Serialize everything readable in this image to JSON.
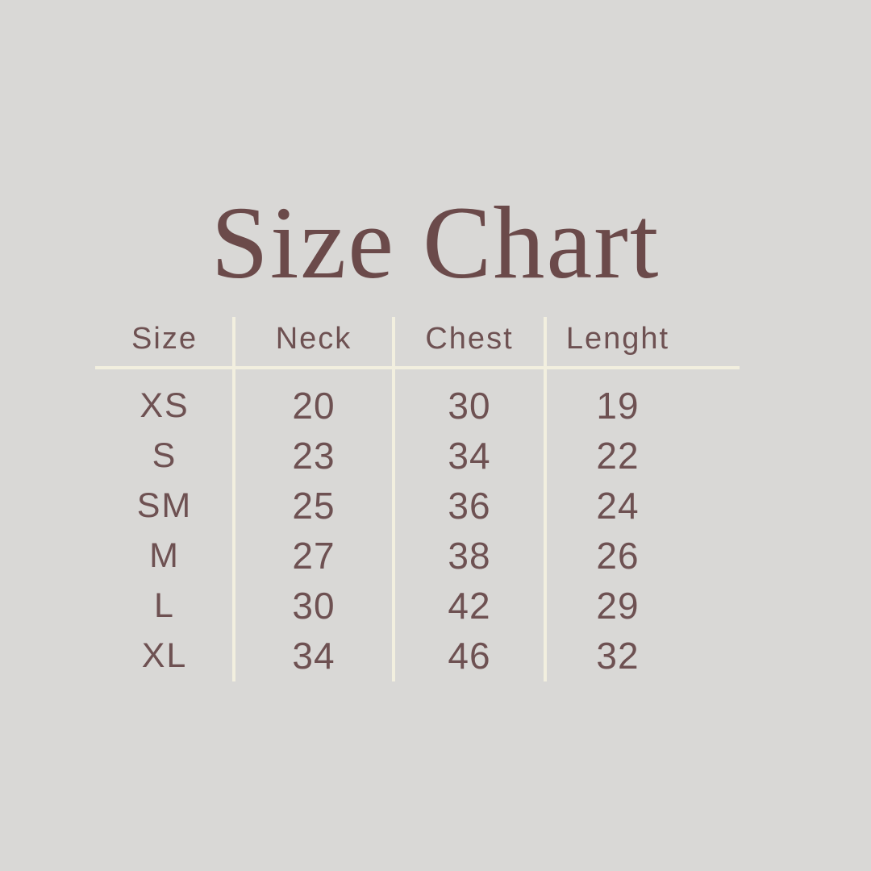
{
  "page": {
    "background_color": "#d9d8d6",
    "title_color": "#6b4a4a",
    "table_text_color": "#6e5152",
    "grid_line_color": "#f2efdf"
  },
  "title": "Size Chart",
  "chart_data": {
    "type": "table",
    "title": "Size Chart",
    "columns": [
      "Size",
      "Neck",
      "Chest",
      "Lenght"
    ],
    "rows": [
      [
        "XS",
        "20",
        "30",
        "19"
      ],
      [
        "S",
        "23",
        "34",
        "22"
      ],
      [
        "SM",
        "25",
        "36",
        "24"
      ],
      [
        "M",
        "27",
        "38",
        "26"
      ],
      [
        "L",
        "30",
        "42",
        "29"
      ],
      [
        "XL",
        "34",
        "46",
        "32"
      ]
    ],
    "layout": {
      "grid": "vertical separators between all 4 columns, single horizontal rule under header row",
      "legend_position": "none"
    }
  }
}
